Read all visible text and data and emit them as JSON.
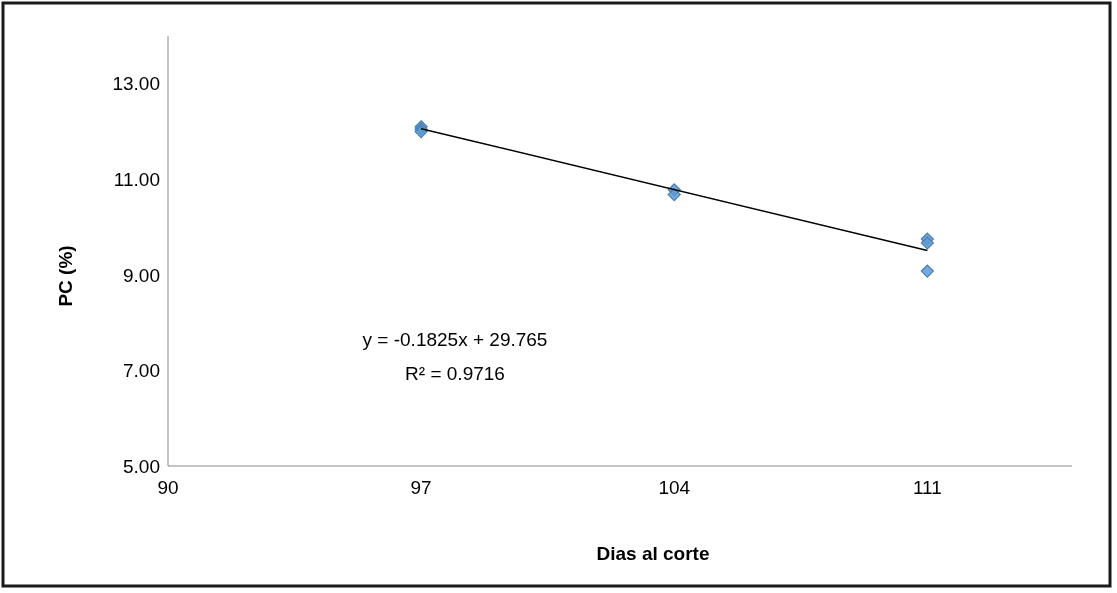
{
  "chart_data": {
    "type": "scatter",
    "xlabel": "Dias al corte",
    "ylabel": "PC (%)",
    "xlim": [
      90,
      115
    ],
    "xticks": [
      90,
      97,
      104,
      111
    ],
    "ylim": [
      5,
      14
    ],
    "yticks": [
      {
        "value": 5,
        "label": "5.00"
      },
      {
        "value": 7,
        "label": "7.00"
      },
      {
        "value": 9,
        "label": "9.00"
      },
      {
        "value": 11,
        "label": "11.00"
      },
      {
        "value": 13,
        "label": "13.00"
      }
    ],
    "grid": false,
    "series": [
      {
        "marker": "diamond",
        "color": "#5b9bd5",
        "x": [
          97,
          97,
          97,
          104,
          104,
          111,
          111,
          111
        ],
        "values": [
          12.1,
          12.05,
          12.0,
          10.78,
          10.68,
          9.75,
          9.67,
          9.08
        ]
      },
      {
        "type": "line",
        "color": "#000000",
        "x": [
          97,
          111
        ],
        "values": [
          12.06,
          9.51
        ]
      }
    ],
    "annotations": [
      "y = -0.1825x + 29.765",
      "R² = 0.9716"
    ]
  }
}
